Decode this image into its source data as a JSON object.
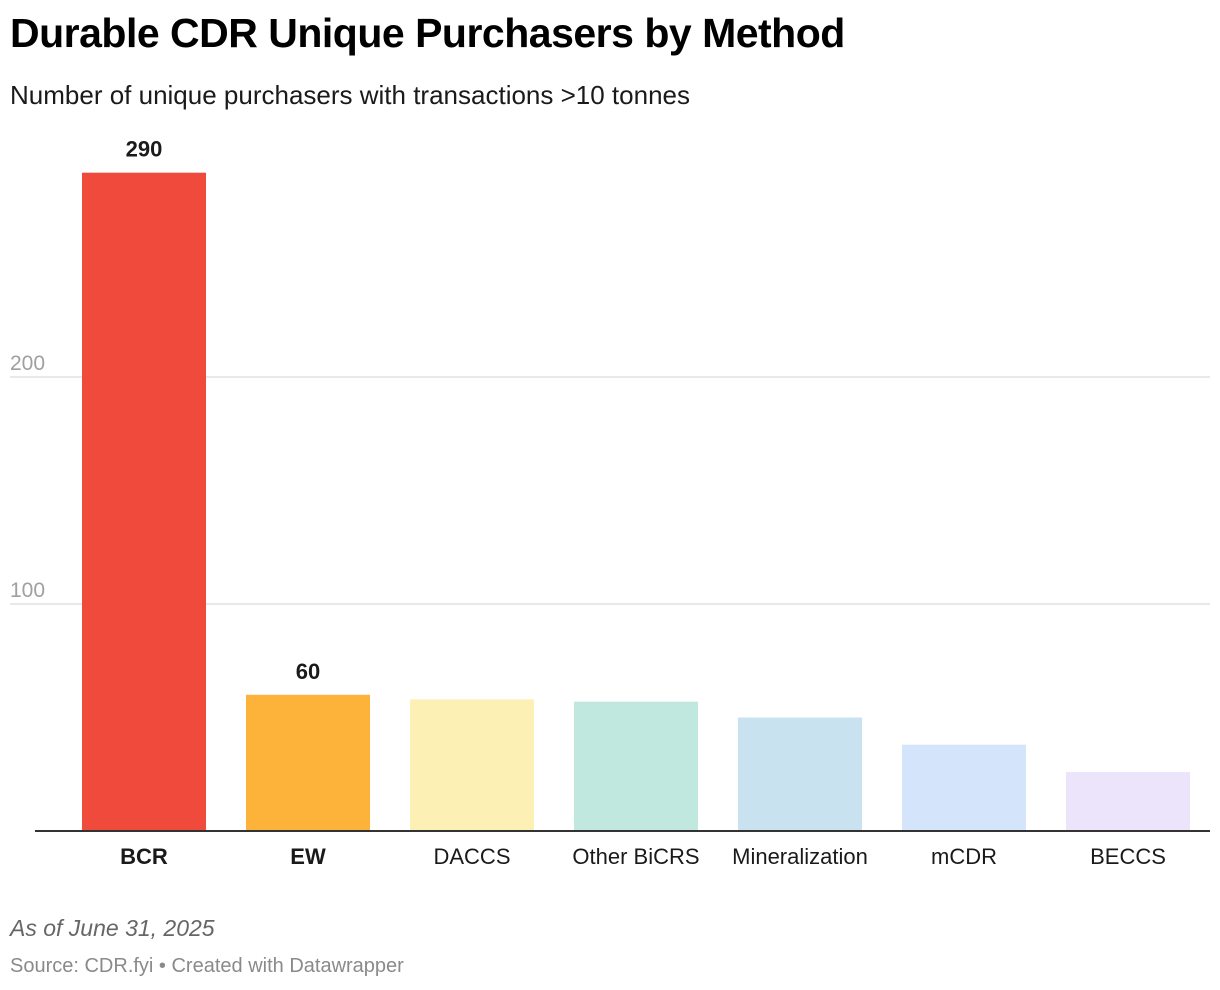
{
  "header": {
    "title": "Durable CDR Unique Purchasers by Method",
    "subtitle": "Number of unique purchasers with transactions >10 tonnes"
  },
  "footer": {
    "note": "As of June 31, 2025",
    "source": "Source: CDR.fyi • Created with Datawrapper"
  },
  "chart_data": {
    "type": "bar",
    "title": "Durable CDR Unique Purchasers by Method",
    "subtitle": "Number of unique purchasers with transactions >10 tonnes",
    "categories": [
      "BCR",
      "EW",
      "DACCS",
      "Other BiCRS",
      "Mineralization",
      "mCDR",
      "BECCS"
    ],
    "values": [
      290,
      60,
      58,
      57,
      50,
      38,
      26
    ],
    "value_labels": [
      "290",
      "60",
      "",
      "",
      "",
      "",
      ""
    ],
    "bold_categories": [
      "BCR",
      "EW"
    ],
    "colors": [
      "#ef4a3c",
      "#fdb23a",
      "#fdf0b5",
      "#c0e8de",
      "#c8e3ef",
      "#d4e5fb",
      "#ebe4fb"
    ],
    "yticks": [
      100,
      200
    ],
    "ylim": [
      0,
      300
    ],
    "grid": true,
    "xlabel": "",
    "ylabel": ""
  }
}
